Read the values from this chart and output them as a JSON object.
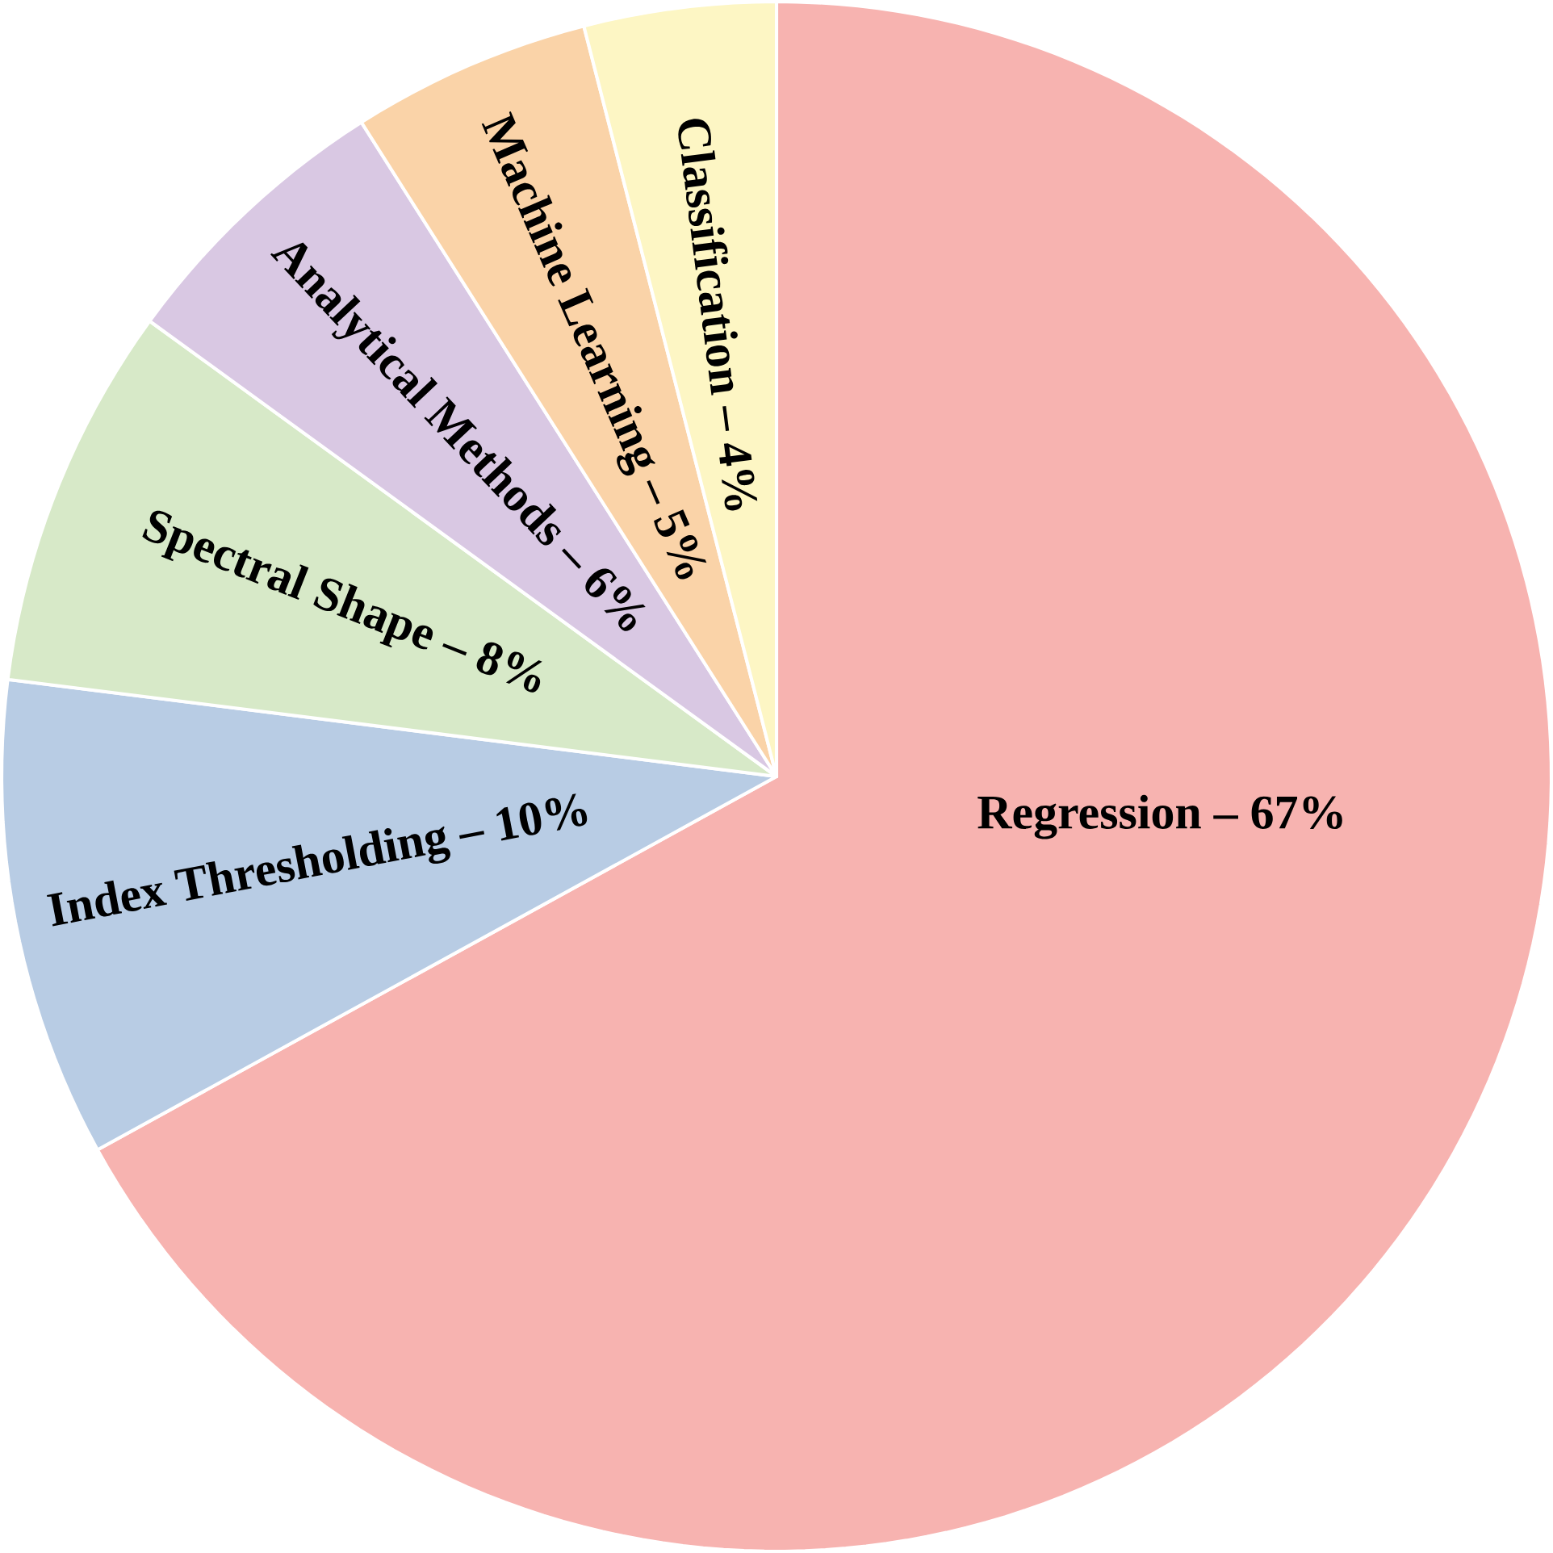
{
  "chart_data": {
    "type": "pie",
    "categories": [
      "Regression – 67%",
      "Index Thresholding – 10%",
      "Spectral Shape – 8%",
      "Analytical Methods – 6%",
      "Machine Learning – 5%",
      "Classification – 4%"
    ],
    "values": [
      67,
      10,
      8,
      6,
      5,
      4
    ],
    "colors": [
      "#f7b3b0",
      "#b8cce4",
      "#d7e9c8",
      "#d9c8e3",
      "#fad3a8",
      "#fdf6c4"
    ]
  }
}
